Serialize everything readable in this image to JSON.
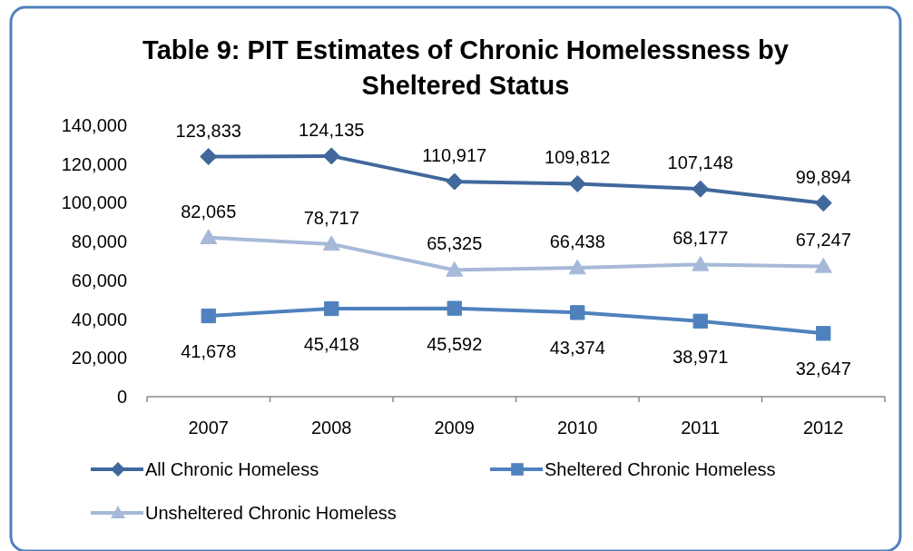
{
  "chart_data": {
    "type": "line",
    "title": "Table 9: PIT Estimates of Chronic Homelessness by Sheltered Status",
    "categories": [
      "2007",
      "2008",
      "2009",
      "2010",
      "2011",
      "2012"
    ],
    "series": [
      {
        "name": "All Chronic Homeless",
        "color": "#41689c",
        "marker": "diamond",
        "values": [
          123833,
          124135,
          110917,
          109812,
          107148,
          99894
        ],
        "value_labels": [
          "123,833",
          "124,135",
          "110,917",
          "109,812",
          "107,148",
          "99,894"
        ]
      },
      {
        "name": "Sheltered Chronic Homeless",
        "color": "#4f81bd",
        "marker": "square",
        "values": [
          41678,
          45418,
          45592,
          43374,
          38971,
          32647
        ],
        "value_labels": [
          "41,678",
          "45,418",
          "45,592",
          "43,374",
          "38,971",
          "32,647"
        ]
      },
      {
        "name": "Unsheltered Chronic Homeless",
        "color": "#a7b9d8",
        "marker": "triangle",
        "values": [
          82065,
          78717,
          65325,
          66438,
          68177,
          67247
        ],
        "value_labels": [
          "82,065",
          "78,717",
          "65,325",
          "66,438",
          "68,177",
          "67,247"
        ]
      }
    ],
    "ylim": [
      0,
      140000
    ],
    "yticks": [
      {
        "value": 0,
        "label": "0"
      },
      {
        "value": 20000,
        "label": "20,000"
      },
      {
        "value": 40000,
        "label": "40,000"
      },
      {
        "value": 60000,
        "label": "60,000"
      },
      {
        "value": 80000,
        "label": "80,000"
      },
      {
        "value": 100000,
        "label": "100,000"
      },
      {
        "value": 120000,
        "label": "120,000"
      },
      {
        "value": 140000,
        "label": "140,000"
      }
    ],
    "legend": "bottom"
  }
}
